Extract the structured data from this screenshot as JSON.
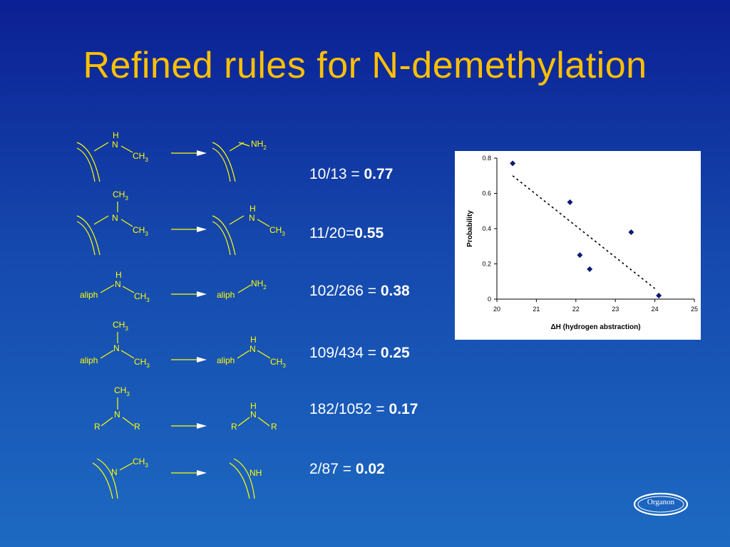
{
  "slide": {
    "title": "Refined rules for N-demethylation"
  },
  "schemes": [
    {
      "ratio_text": "10/13 = ",
      "ratio_value": "0.77"
    },
    {
      "ratio_text": "11/20=",
      "ratio_value": "0.55"
    },
    {
      "ratio_text": "102/266 = ",
      "ratio_value": "0.38"
    },
    {
      "ratio_text": "109/434 = ",
      "ratio_value": "0.25"
    },
    {
      "ratio_text": "182/1052 = ",
      "ratio_value": "0.17"
    },
    {
      "ratio_text": "2/87 = ",
      "ratio_value": "0.02"
    }
  ],
  "labels": {
    "H": "H",
    "N": "N",
    "C": "CH",
    "sub3": "3",
    "NH": "NH",
    "sub2": "2",
    "aliph": "aliph",
    "R": "R"
  },
  "chart_data": {
    "type": "scatter",
    "xlabel": "ΔH (hydrogen abstraction)",
    "ylabel": "Probability",
    "xlim": [
      20,
      25
    ],
    "ylim": [
      0,
      0.8
    ],
    "xticks": [
      "20",
      "21",
      "22",
      "23",
      "24",
      "25"
    ],
    "yticks": [
      "0",
      "0.2",
      "0.4",
      "0.6",
      "0.8"
    ],
    "points": [
      {
        "x": 20.4,
        "y": 0.77
      },
      {
        "x": 21.85,
        "y": 0.55
      },
      {
        "x": 22.1,
        "y": 0.25
      },
      {
        "x": 22.35,
        "y": 0.17
      },
      {
        "x": 23.4,
        "y": 0.38
      },
      {
        "x": 24.1,
        "y": 0.02
      }
    ],
    "trendline": {
      "style": "dotted",
      "from": {
        "x": 20.4,
        "y": 0.7
      },
      "to": {
        "x": 24.0,
        "y": 0.06
      }
    },
    "marker_color": "#0a1a70",
    "grid": false
  },
  "colors": {
    "title": "#ffc000",
    "structure": "#ffff00",
    "text": "#ffffff"
  },
  "logo": {
    "text": "Organon"
  }
}
